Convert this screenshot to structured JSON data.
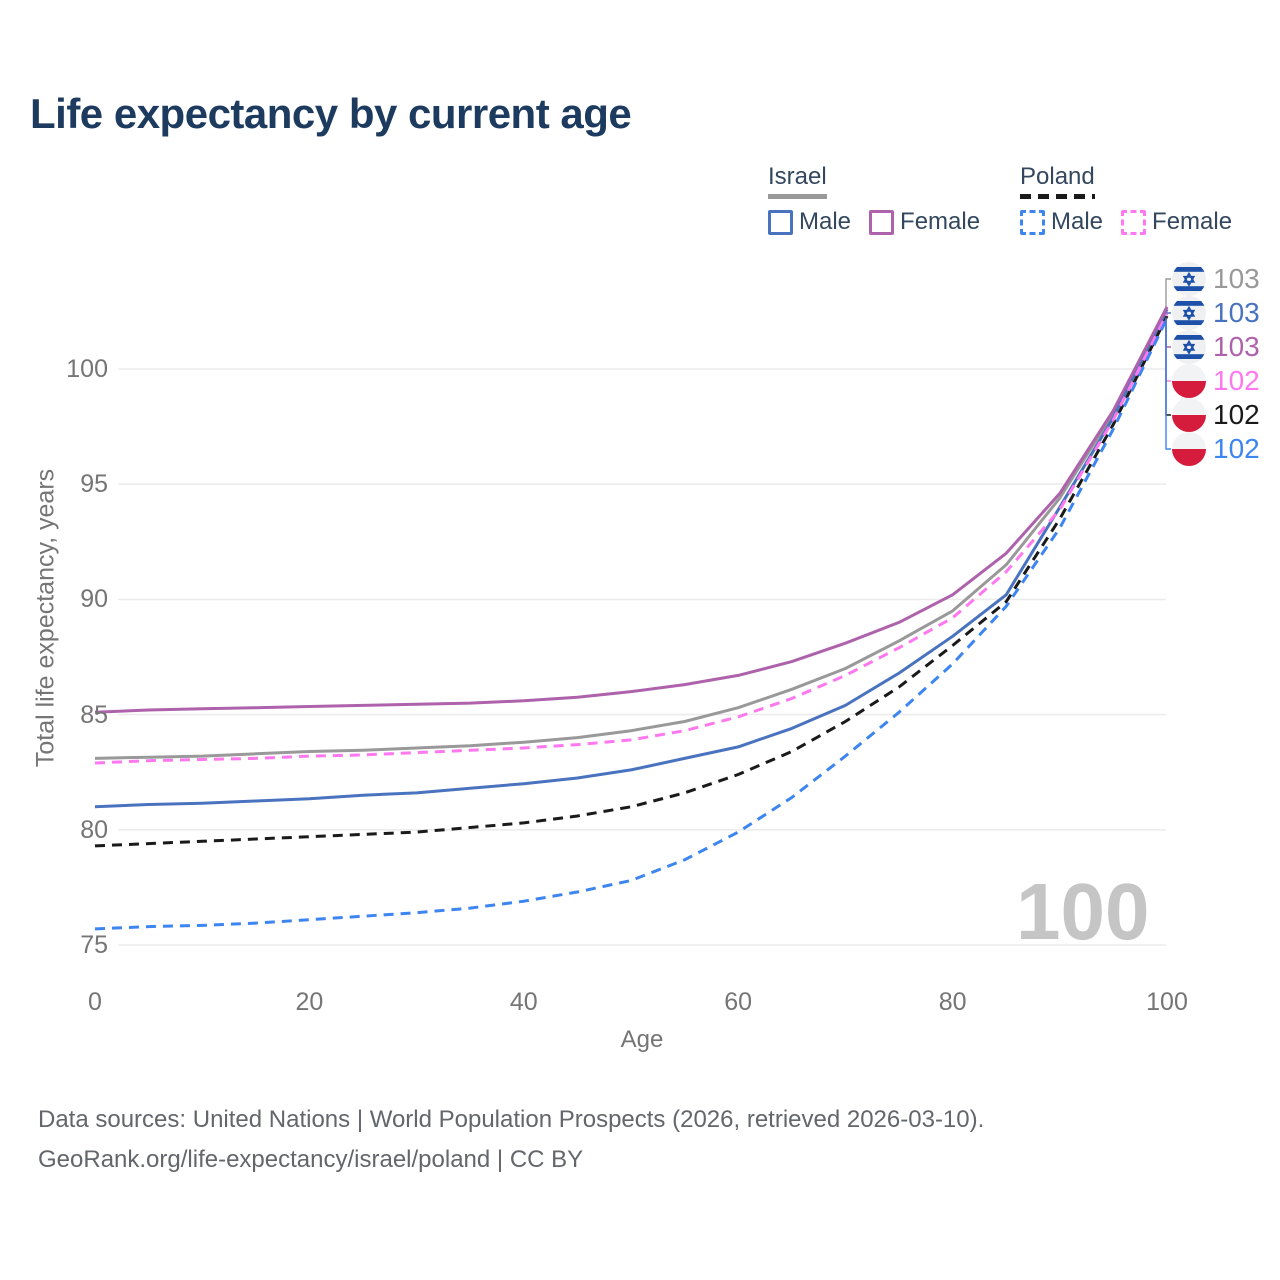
{
  "title": "Life expectancy by current age",
  "legend": {
    "groups": [
      {
        "label": "Israel",
        "style": "solid",
        "items": [
          {
            "label": "Male"
          },
          {
            "label": "Female"
          }
        ]
      },
      {
        "label": "Poland",
        "style": "dashed",
        "items": [
          {
            "label": "Male"
          },
          {
            "label": "Female"
          }
        ]
      }
    ]
  },
  "chart_data": {
    "type": "line",
    "title": "Life expectancy by current age",
    "xlabel": "Age",
    "ylabel": "Total life expectancy, years",
    "x_ticks": [
      0,
      20,
      40,
      60,
      80,
      100
    ],
    "y_ticks": [
      75,
      80,
      85,
      90,
      95,
      100
    ],
    "xlim": [
      0,
      100
    ],
    "ylim": [
      73.5,
      104
    ],
    "grid": "horizontal",
    "x": [
      0,
      5,
      10,
      15,
      20,
      25,
      30,
      35,
      40,
      45,
      50,
      55,
      60,
      65,
      70,
      75,
      80,
      85,
      90,
      95,
      100
    ],
    "series": [
      {
        "key": "israel_total",
        "name": "Israel Both sexes",
        "country": "Israel",
        "style": "solid",
        "color": "#999999",
        "values": [
          83.1,
          83.15,
          83.2,
          83.3,
          83.4,
          83.45,
          83.55,
          83.65,
          83.8,
          84.0,
          84.3,
          84.7,
          85.3,
          86.1,
          87.0,
          88.2,
          89.5,
          91.5,
          94.4,
          98.1,
          102.6
        ]
      },
      {
        "key": "israel_male",
        "name": "Israel Male",
        "country": "Israel",
        "style": "solid",
        "color": "#4a73bf",
        "values": [
          81.0,
          81.1,
          81.15,
          81.25,
          81.35,
          81.5,
          81.6,
          81.8,
          82.0,
          82.25,
          82.6,
          83.1,
          83.6,
          84.4,
          85.4,
          86.8,
          88.4,
          90.2,
          94.0,
          97.9,
          102.6
        ]
      },
      {
        "key": "israel_female",
        "name": "Israel Female",
        "country": "Israel",
        "style": "solid",
        "color": "#ae62ac",
        "values": [
          85.1,
          85.2,
          85.25,
          85.3,
          85.35,
          85.4,
          85.45,
          85.5,
          85.6,
          85.75,
          86.0,
          86.3,
          86.7,
          87.3,
          88.1,
          89.0,
          90.2,
          92.0,
          94.6,
          98.2,
          102.7
        ]
      },
      {
        "key": "poland_total",
        "name": "Poland Both sexes",
        "country": "Poland",
        "style": "dashed",
        "color": "#1a1a1a",
        "values": [
          79.3,
          79.4,
          79.5,
          79.6,
          79.7,
          79.8,
          79.9,
          80.1,
          80.3,
          80.6,
          81.0,
          81.6,
          82.4,
          83.4,
          84.7,
          86.2,
          88.0,
          89.9,
          93.5,
          97.6,
          102.3
        ]
      },
      {
        "key": "poland_female",
        "name": "Poland Female",
        "country": "Poland",
        "style": "dashed",
        "color": "#ff78ef",
        "values": [
          82.9,
          83.0,
          83.05,
          83.1,
          83.2,
          83.25,
          83.35,
          83.45,
          83.55,
          83.7,
          83.9,
          84.3,
          84.9,
          85.7,
          86.7,
          87.9,
          89.2,
          91.2,
          93.9,
          97.8,
          102.4
        ]
      },
      {
        "key": "poland_male",
        "name": "Poland Male",
        "country": "Poland",
        "style": "dashed",
        "color": "#3d85f0",
        "values": [
          75.7,
          75.8,
          75.85,
          75.95,
          76.1,
          76.25,
          76.4,
          76.6,
          76.9,
          77.3,
          77.8,
          78.7,
          79.9,
          81.4,
          83.2,
          85.1,
          87.2,
          89.7,
          93.1,
          97.4,
          102.2
        ]
      }
    ],
    "legend_position": "top-right"
  },
  "right_labels": [
    {
      "series": "israel_total",
      "flag": "israel",
      "value": "103"
    },
    {
      "series": "israel_male",
      "flag": "israel",
      "value": "103"
    },
    {
      "series": "israel_female",
      "flag": "israel",
      "value": "103"
    },
    {
      "series": "poland_female",
      "flag": "poland",
      "value": "102"
    },
    {
      "series": "poland_total",
      "flag": "poland",
      "value": "102"
    },
    {
      "series": "poland_male",
      "flag": "poland",
      "value": "102"
    }
  ],
  "flag_colors": {
    "israel_blue": "#1d50a8",
    "poland_red": "#d51c3c",
    "flag_bg": "#eff0f2"
  },
  "watermark": "100",
  "footer": {
    "line1": "Data sources: United Nations | World Population Prospects (2026, retrieved 2026-03-10).",
    "line2": "GeoRank.org/life-expectancy/israel/poland | CC BY"
  }
}
